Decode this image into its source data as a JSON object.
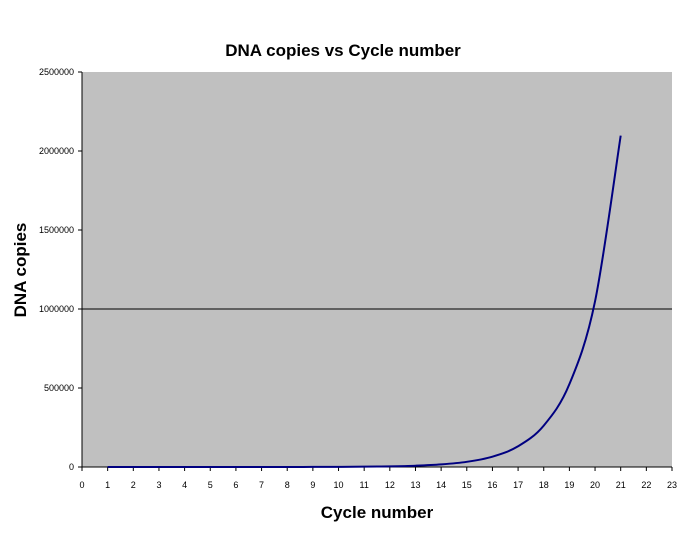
{
  "chart_data": {
    "type": "line",
    "title": "DNA copies vs Cycle number",
    "xlabel": "Cycle number",
    "ylabel": "DNA copies",
    "xlim": [
      0,
      23
    ],
    "ylim": [
      0,
      2500000
    ],
    "x_ticks": [
      "0",
      "1",
      "2",
      "3",
      "4",
      "5",
      "6",
      "7",
      "8",
      "9",
      "10",
      "11",
      "12",
      "13",
      "14",
      "15",
      "16",
      "17",
      "18",
      "19",
      "20",
      "21",
      "22",
      "23"
    ],
    "y_ticks": [
      "0",
      "500000",
      "1000000",
      "1500000",
      "2000000",
      "2500000"
    ],
    "grid": "horizontal at 1000000",
    "legend": "none",
    "plot_background": "#c0c0c0",
    "line_color": "#000080",
    "series": [
      {
        "x": [
          1,
          2,
          3,
          4,
          5,
          6,
          7,
          8,
          9,
          10,
          11,
          12,
          13,
          14,
          15,
          16,
          17,
          18,
          19,
          20,
          21
        ],
        "values": [
          2,
          4,
          8,
          16,
          32,
          64,
          128,
          256,
          512,
          1024,
          2048,
          4096,
          8192,
          16384,
          32768,
          65536,
          131072,
          262144,
          524288,
          1048576,
          2097152
        ]
      }
    ]
  }
}
